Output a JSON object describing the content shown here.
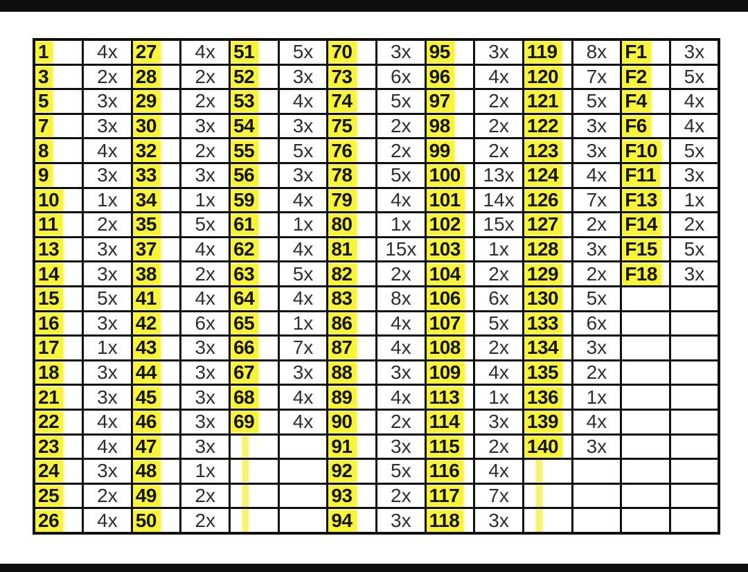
{
  "page": {
    "background_color": "#ffffff",
    "top_bar_color": "#0f0f0f",
    "bottom_bar_color": "#0f0f0f"
  },
  "table": {
    "description": "number-multiplier-tracking-sheet",
    "highlight_color": "#f8f43a",
    "stripe_color": "#f7f272",
    "border_color": "#0e0e0e",
    "pairs_per_row": 7,
    "rows": [
      [
        {
          "num": "1",
          "mult": "4x"
        },
        {
          "num": "27",
          "mult": "4x"
        },
        {
          "num": "51",
          "mult": "5x"
        },
        {
          "num": "70",
          "mult": "3x"
        },
        {
          "num": "95",
          "mult": "3x"
        },
        {
          "num": "119",
          "mult": "8x"
        },
        {
          "num": "F1",
          "mult": "3x"
        }
      ],
      [
        {
          "num": "3",
          "mult": "2x"
        },
        {
          "num": "28",
          "mult": "2x"
        },
        {
          "num": "52",
          "mult": "3x"
        },
        {
          "num": "73",
          "mult": "6x"
        },
        {
          "num": "96",
          "mult": "4x"
        },
        {
          "num": "120",
          "mult": "7x"
        },
        {
          "num": "F2",
          "mult": "5x"
        }
      ],
      [
        {
          "num": "5",
          "mult": "3x"
        },
        {
          "num": "29",
          "mult": "2x"
        },
        {
          "num": "53",
          "mult": "4x"
        },
        {
          "num": "74",
          "mult": "5x"
        },
        {
          "num": "97",
          "mult": "2x"
        },
        {
          "num": "121",
          "mult": "5x"
        },
        {
          "num": "F4",
          "mult": "4x"
        }
      ],
      [
        {
          "num": "7",
          "mult": "3x"
        },
        {
          "num": "30",
          "mult": "3x"
        },
        {
          "num": "54",
          "mult": "3x"
        },
        {
          "num": "75",
          "mult": "2x"
        },
        {
          "num": "98",
          "mult": "2x"
        },
        {
          "num": "122",
          "mult": "3x"
        },
        {
          "num": "F6",
          "mult": "4x"
        }
      ],
      [
        {
          "num": "8",
          "mult": "4x"
        },
        {
          "num": "32",
          "mult": "2x"
        },
        {
          "num": "55",
          "mult": "5x"
        },
        {
          "num": "76",
          "mult": "2x"
        },
        {
          "num": "99",
          "mult": "2x"
        },
        {
          "num": "123",
          "mult": "3x"
        },
        {
          "num": "F10",
          "mult": "5x"
        }
      ],
      [
        {
          "num": "9",
          "mult": "3x"
        },
        {
          "num": "33",
          "mult": "3x"
        },
        {
          "num": "56",
          "mult": "3x"
        },
        {
          "num": "78",
          "mult": "5x"
        },
        {
          "num": "100",
          "mult": "13x"
        },
        {
          "num": "124",
          "mult": "4x"
        },
        {
          "num": "F11",
          "mult": "3x"
        }
      ],
      [
        {
          "num": "10",
          "mult": "1x"
        },
        {
          "num": "34",
          "mult": "1x"
        },
        {
          "num": "59",
          "mult": "4x"
        },
        {
          "num": "79",
          "mult": "4x"
        },
        {
          "num": "101",
          "mult": "14x"
        },
        {
          "num": "126",
          "mult": "7x"
        },
        {
          "num": "F13",
          "mult": "1x"
        }
      ],
      [
        {
          "num": "11",
          "mult": "2x"
        },
        {
          "num": "35",
          "mult": "5x"
        },
        {
          "num": "61",
          "mult": "1x"
        },
        {
          "num": "80",
          "mult": "1x"
        },
        {
          "num": "102",
          "mult": "15x"
        },
        {
          "num": "127",
          "mult": "2x"
        },
        {
          "num": "F14",
          "mult": "2x"
        }
      ],
      [
        {
          "num": "13",
          "mult": "3x"
        },
        {
          "num": "37",
          "mult": "4x"
        },
        {
          "num": "62",
          "mult": "4x"
        },
        {
          "num": "81",
          "mult": "15x"
        },
        {
          "num": "103",
          "mult": "1x"
        },
        {
          "num": "128",
          "mult": "3x"
        },
        {
          "num": "F15",
          "mult": "5x"
        }
      ],
      [
        {
          "num": "14",
          "mult": "3x"
        },
        {
          "num": "38",
          "mult": "2x"
        },
        {
          "num": "63",
          "mult": "5x"
        },
        {
          "num": "82",
          "mult": "2x"
        },
        {
          "num": "104",
          "mult": "2x"
        },
        {
          "num": "129",
          "mult": "2x"
        },
        {
          "num": "F18",
          "mult": "3x"
        }
      ],
      [
        {
          "num": "15",
          "mult": "5x"
        },
        {
          "num": "41",
          "mult": "4x"
        },
        {
          "num": "64",
          "mult": "4x"
        },
        {
          "num": "83",
          "mult": "8x"
        },
        {
          "num": "106",
          "mult": "6x"
        },
        {
          "num": "130",
          "mult": "5x"
        },
        {
          "num": "",
          "mult": ""
        }
      ],
      [
        {
          "num": "16",
          "mult": "3x"
        },
        {
          "num": "42",
          "mult": "6x"
        },
        {
          "num": "65",
          "mult": "1x"
        },
        {
          "num": "86",
          "mult": "4x"
        },
        {
          "num": "107",
          "mult": "5x"
        },
        {
          "num": "133",
          "mult": "6x"
        },
        {
          "num": "",
          "mult": ""
        }
      ],
      [
        {
          "num": "17",
          "mult": "1x"
        },
        {
          "num": "43",
          "mult": "3x"
        },
        {
          "num": "66",
          "mult": "7x"
        },
        {
          "num": "87",
          "mult": "4x"
        },
        {
          "num": "108",
          "mult": "2x"
        },
        {
          "num": "134",
          "mult": "3x"
        },
        {
          "num": "",
          "mult": ""
        }
      ],
      [
        {
          "num": "18",
          "mult": "3x"
        },
        {
          "num": "44",
          "mult": "3x"
        },
        {
          "num": "67",
          "mult": "3x"
        },
        {
          "num": "88",
          "mult": "3x"
        },
        {
          "num": "109",
          "mult": "4x"
        },
        {
          "num": "135",
          "mult": "2x"
        },
        {
          "num": "",
          "mult": ""
        }
      ],
      [
        {
          "num": "21",
          "mult": "3x"
        },
        {
          "num": "45",
          "mult": "3x"
        },
        {
          "num": "68",
          "mult": "4x"
        },
        {
          "num": "89",
          "mult": "4x"
        },
        {
          "num": "113",
          "mult": "1x"
        },
        {
          "num": "136",
          "mult": "1x"
        },
        {
          "num": "",
          "mult": ""
        }
      ],
      [
        {
          "num": "22",
          "mult": "4x"
        },
        {
          "num": "46",
          "mult": "3x"
        },
        {
          "num": "69",
          "mult": "4x"
        },
        {
          "num": "90",
          "mult": "2x"
        },
        {
          "num": "114",
          "mult": "3x"
        },
        {
          "num": "139",
          "mult": "4x"
        },
        {
          "num": "",
          "mult": ""
        }
      ],
      [
        {
          "num": "23",
          "mult": "4x"
        },
        {
          "num": "47",
          "mult": "3x"
        },
        {
          "num": "",
          "mult": "",
          "stripe": true
        },
        {
          "num": "91",
          "mult": "3x"
        },
        {
          "num": "115",
          "mult": "2x"
        },
        {
          "num": "140",
          "mult": "3x"
        },
        {
          "num": "",
          "mult": ""
        }
      ],
      [
        {
          "num": "24",
          "mult": "3x"
        },
        {
          "num": "48",
          "mult": "1x"
        },
        {
          "num": "",
          "mult": "",
          "stripe": true
        },
        {
          "num": "92",
          "mult": "5x"
        },
        {
          "num": "116",
          "mult": "4x"
        },
        {
          "num": "",
          "mult": "",
          "stripe": true
        },
        {
          "num": "",
          "mult": ""
        }
      ],
      [
        {
          "num": "25",
          "mult": "2x"
        },
        {
          "num": "49",
          "mult": "2x"
        },
        {
          "num": "",
          "mult": "",
          "stripe": true
        },
        {
          "num": "93",
          "mult": "2x"
        },
        {
          "num": "117",
          "mult": "7x"
        },
        {
          "num": "",
          "mult": "",
          "stripe": true
        },
        {
          "num": "",
          "mult": ""
        }
      ],
      [
        {
          "num": "26",
          "mult": "4x"
        },
        {
          "num": "50",
          "mult": "2x"
        },
        {
          "num": "",
          "mult": "",
          "stripe": true
        },
        {
          "num": "94",
          "mult": "3x"
        },
        {
          "num": "118",
          "mult": "3x"
        },
        {
          "num": "",
          "mult": "",
          "stripe": true
        },
        {
          "num": "",
          "mult": ""
        }
      ]
    ]
  }
}
